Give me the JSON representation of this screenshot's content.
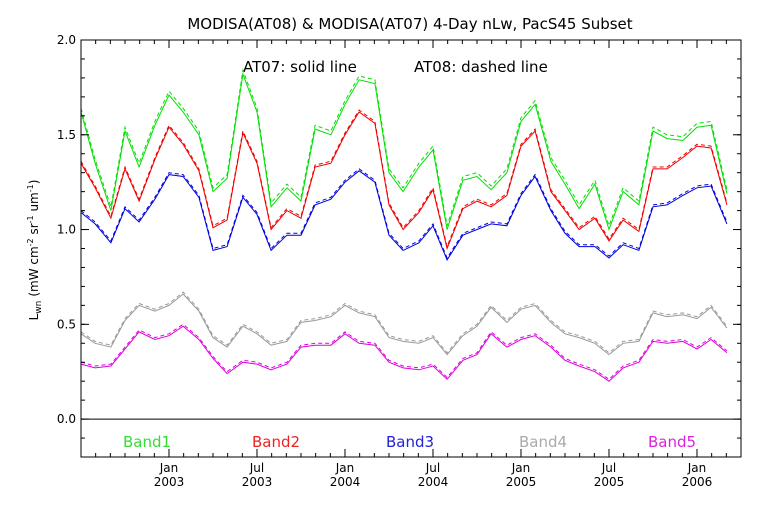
{
  "chart_data": {
    "type": "line",
    "title": "MODISA(AT08) & MODISA(AT07) 4-Day nLw, PacS45 Subset",
    "annotation_left": "AT07: solid line",
    "annotation_right": "AT08: dashed line",
    "ylabel_main": "L",
    "ylabel_sub": "wn",
    "ylabel_units": "(mW cm",
    "ylabel_units_sup1": "-2",
    "ylabel_units_mid": " sr",
    "ylabel_units_sup2": "-1",
    "ylabel_units_end": " um",
    "ylabel_units_sup3": "-1",
    "ylabel_close": ")",
    "ylim": [
      -0.2,
      2.0
    ],
    "xlim": [
      2002.5,
      2006.25
    ],
    "grid": false,
    "zero_line": true,
    "yticks": [
      {
        "value": 0.0,
        "label": "0.0"
      },
      {
        "value": 0.5,
        "label": "0.5"
      },
      {
        "value": 1.0,
        "label": "1.0"
      },
      {
        "value": 1.5,
        "label": "1.5"
      },
      {
        "value": 2.0,
        "label": "2.0"
      }
    ],
    "xticks": [
      {
        "value": 2003.0,
        "month": "Jan",
        "year": "2003"
      },
      {
        "value": 2003.5,
        "month": "Jul",
        "year": "2003"
      },
      {
        "value": 2004.0,
        "month": "Jan",
        "year": "2004"
      },
      {
        "value": 2004.5,
        "month": "Jul",
        "year": "2004"
      },
      {
        "value": 2005.0,
        "month": "Jan",
        "year": "2005"
      },
      {
        "value": 2005.5,
        "month": "Jul",
        "year": "2005"
      },
      {
        "value": 2006.0,
        "month": "Jan",
        "year": "2006"
      }
    ],
    "x": [
      2002.5,
      2002.58,
      2002.67,
      2002.75,
      2002.83,
      2002.92,
      2003.0,
      2003.08,
      2003.17,
      2003.25,
      2003.33,
      2003.42,
      2003.5,
      2003.58,
      2003.67,
      2003.75,
      2003.83,
      2003.92,
      2004.0,
      2004.08,
      2004.17,
      2004.25,
      2004.33,
      2004.42,
      2004.5,
      2004.58,
      2004.67,
      2004.75,
      2004.83,
      2004.92,
      2005.0,
      2005.08,
      2005.17,
      2005.25,
      2005.33,
      2005.42,
      2005.5,
      2005.58,
      2005.67,
      2005.75,
      2005.83,
      2005.92,
      2006.0,
      2006.08,
      2006.17
    ],
    "series": [
      {
        "name": "Band1",
        "color": "#00e000",
        "legend_color": "#33dd33",
        "solid": [
          1.62,
          1.35,
          1.1,
          1.52,
          1.33,
          1.55,
          1.71,
          1.62,
          1.5,
          1.2,
          1.27,
          1.82,
          1.62,
          1.12,
          1.22,
          1.15,
          1.53,
          1.5,
          1.66,
          1.79,
          1.77,
          1.3,
          1.2,
          1.33,
          1.42,
          1.0,
          1.26,
          1.28,
          1.21,
          1.3,
          1.57,
          1.66,
          1.36,
          1.24,
          1.11,
          1.24,
          1.0,
          1.2,
          1.13,
          1.52,
          1.48,
          1.47,
          1.54,
          1.55,
          1.19
        ],
        "dashed": [
          1.64,
          1.37,
          1.12,
          1.54,
          1.35,
          1.57,
          1.73,
          1.64,
          1.52,
          1.22,
          1.29,
          1.84,
          1.64,
          1.14,
          1.24,
          1.17,
          1.55,
          1.52,
          1.68,
          1.81,
          1.79,
          1.32,
          1.22,
          1.35,
          1.44,
          1.02,
          1.28,
          1.3,
          1.23,
          1.32,
          1.59,
          1.68,
          1.38,
          1.26,
          1.13,
          1.26,
          1.02,
          1.22,
          1.15,
          1.54,
          1.5,
          1.49,
          1.56,
          1.57,
          1.21
        ]
      },
      {
        "name": "Band2",
        "color": "#ee0000",
        "legend_color": "#ee2222",
        "solid": [
          1.35,
          1.22,
          1.06,
          1.32,
          1.15,
          1.37,
          1.54,
          1.45,
          1.31,
          1.01,
          1.05,
          1.51,
          1.35,
          1.0,
          1.1,
          1.06,
          1.33,
          1.35,
          1.5,
          1.62,
          1.56,
          1.13,
          1.0,
          1.09,
          1.21,
          0.9,
          1.11,
          1.15,
          1.12,
          1.18,
          1.44,
          1.52,
          1.2,
          1.1,
          1.0,
          1.06,
          0.94,
          1.05,
          0.99,
          1.32,
          1.32,
          1.38,
          1.44,
          1.43,
          1.13
        ],
        "dashed": [
          1.36,
          1.23,
          1.07,
          1.33,
          1.16,
          1.38,
          1.55,
          1.46,
          1.32,
          1.02,
          1.06,
          1.52,
          1.36,
          1.01,
          1.11,
          1.07,
          1.34,
          1.36,
          1.51,
          1.63,
          1.57,
          1.14,
          1.01,
          1.1,
          1.22,
          0.91,
          1.12,
          1.16,
          1.13,
          1.19,
          1.45,
          1.53,
          1.21,
          1.11,
          1.01,
          1.07,
          0.95,
          1.06,
          1.0,
          1.33,
          1.33,
          1.39,
          1.45,
          1.44,
          1.14
        ]
      },
      {
        "name": "Band3",
        "color": "#0000dd",
        "legend_color": "#2222dd",
        "solid": [
          1.09,
          1.03,
          0.93,
          1.11,
          1.04,
          1.16,
          1.29,
          1.28,
          1.17,
          0.89,
          0.91,
          1.17,
          1.08,
          0.89,
          0.97,
          0.97,
          1.13,
          1.16,
          1.25,
          1.31,
          1.25,
          0.97,
          0.89,
          0.93,
          1.02,
          0.84,
          0.97,
          1.0,
          1.03,
          1.02,
          1.18,
          1.28,
          1.1,
          0.98,
          0.91,
          0.91,
          0.85,
          0.92,
          0.89,
          1.12,
          1.13,
          1.18,
          1.22,
          1.23,
          1.03
        ],
        "dashed": [
          1.1,
          1.04,
          0.94,
          1.12,
          1.05,
          1.17,
          1.3,
          1.29,
          1.18,
          0.9,
          0.92,
          1.18,
          1.09,
          0.9,
          0.98,
          0.98,
          1.14,
          1.17,
          1.26,
          1.32,
          1.26,
          0.98,
          0.9,
          0.94,
          1.03,
          0.85,
          0.98,
          1.01,
          1.04,
          1.03,
          1.19,
          1.29,
          1.11,
          0.99,
          0.92,
          0.92,
          0.86,
          0.93,
          0.9,
          1.13,
          1.14,
          1.19,
          1.23,
          1.24,
          1.04
        ]
      },
      {
        "name": "Band4",
        "color": "#999999",
        "legend_color": "#aaaaaa",
        "solid": [
          0.45,
          0.4,
          0.38,
          0.52,
          0.6,
          0.57,
          0.6,
          0.66,
          0.57,
          0.43,
          0.38,
          0.49,
          0.45,
          0.39,
          0.41,
          0.51,
          0.52,
          0.54,
          0.6,
          0.56,
          0.54,
          0.43,
          0.41,
          0.4,
          0.43,
          0.34,
          0.44,
          0.49,
          0.59,
          0.51,
          0.58,
          0.6,
          0.51,
          0.45,
          0.43,
          0.4,
          0.34,
          0.4,
          0.41,
          0.56,
          0.54,
          0.55,
          0.53,
          0.59,
          0.48
        ],
        "dashed": [
          0.46,
          0.41,
          0.39,
          0.53,
          0.61,
          0.58,
          0.61,
          0.67,
          0.58,
          0.44,
          0.39,
          0.5,
          0.46,
          0.4,
          0.42,
          0.52,
          0.53,
          0.55,
          0.61,
          0.57,
          0.55,
          0.44,
          0.42,
          0.41,
          0.44,
          0.35,
          0.45,
          0.5,
          0.6,
          0.52,
          0.59,
          0.61,
          0.52,
          0.46,
          0.44,
          0.41,
          0.35,
          0.41,
          0.42,
          0.57,
          0.55,
          0.56,
          0.54,
          0.6,
          0.49
        ]
      },
      {
        "name": "Band5",
        "color": "#dd00dd",
        "legend_color": "#dd22dd",
        "solid": [
          0.29,
          0.27,
          0.28,
          0.37,
          0.46,
          0.42,
          0.44,
          0.49,
          0.42,
          0.32,
          0.24,
          0.3,
          0.29,
          0.26,
          0.29,
          0.38,
          0.39,
          0.39,
          0.45,
          0.4,
          0.39,
          0.3,
          0.27,
          0.26,
          0.28,
          0.21,
          0.31,
          0.34,
          0.45,
          0.38,
          0.42,
          0.44,
          0.38,
          0.31,
          0.28,
          0.25,
          0.2,
          0.27,
          0.3,
          0.41,
          0.4,
          0.41,
          0.37,
          0.42,
          0.35
        ],
        "dashed": [
          0.3,
          0.28,
          0.29,
          0.38,
          0.47,
          0.43,
          0.45,
          0.5,
          0.43,
          0.33,
          0.25,
          0.31,
          0.3,
          0.27,
          0.3,
          0.39,
          0.4,
          0.4,
          0.46,
          0.41,
          0.4,
          0.31,
          0.28,
          0.27,
          0.29,
          0.22,
          0.32,
          0.35,
          0.46,
          0.39,
          0.43,
          0.45,
          0.39,
          0.32,
          0.29,
          0.26,
          0.21,
          0.28,
          0.31,
          0.42,
          0.41,
          0.42,
          0.38,
          0.43,
          0.36
        ]
      }
    ]
  }
}
